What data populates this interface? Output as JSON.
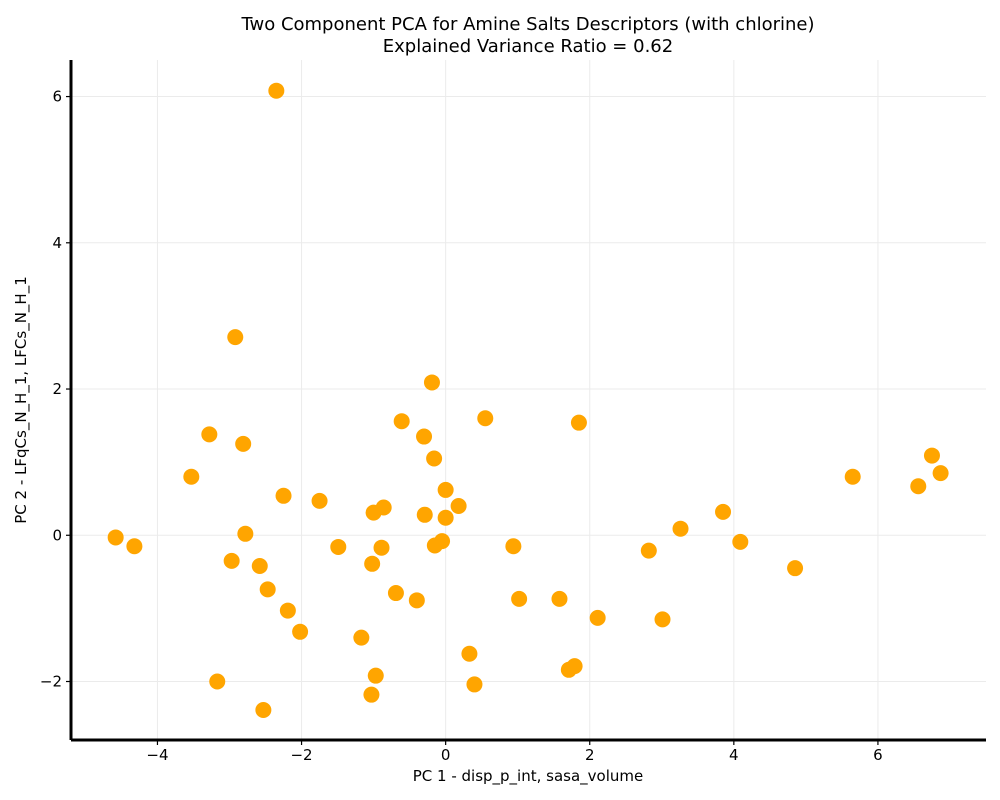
{
  "chart_data": {
    "type": "scatter",
    "title": "Two Component PCA for Amine Salts Descriptors (with chlorine)",
    "subtitle": "Explained Variance Ratio = 0.62",
    "xlabel": "PC 1 - disp_p_int, sasa_volume",
    "ylabel": "PC 2 - LFqCs_N_H_1, LFCs_N_H_1",
    "xlim": [
      -5.2,
      7.5
    ],
    "ylim": [
      -2.8,
      6.5
    ],
    "xticks": [
      -4,
      -2,
      0,
      2,
      4,
      6
    ],
    "yticks": [
      -2,
      0,
      2,
      4,
      6
    ],
    "xtick_labels": [
      "−4",
      "−2",
      "0",
      "2",
      "4",
      "6"
    ],
    "ytick_labels": [
      "−2",
      "0",
      "2",
      "4",
      "6"
    ],
    "grid": true,
    "point_color": "#FFA500",
    "points": [
      {
        "x": -2.35,
        "y": 6.08
      },
      {
        "x": -2.92,
        "y": 2.71
      },
      {
        "x": -0.19,
        "y": 2.09
      },
      {
        "x": 0.55,
        "y": 1.6
      },
      {
        "x": 1.85,
        "y": 1.54
      },
      {
        "x": -0.61,
        "y": 1.56
      },
      {
        "x": -0.3,
        "y": 1.35
      },
      {
        "x": -3.28,
        "y": 1.38
      },
      {
        "x": -2.81,
        "y": 1.25
      },
      {
        "x": -0.16,
        "y": 1.05
      },
      {
        "x": 6.75,
        "y": 1.09
      },
      {
        "x": 6.87,
        "y": 0.85
      },
      {
        "x": 5.65,
        "y": 0.8
      },
      {
        "x": 6.56,
        "y": 0.67
      },
      {
        "x": -3.53,
        "y": 0.8
      },
      {
        "x": 0.0,
        "y": 0.62
      },
      {
        "x": -2.25,
        "y": 0.54
      },
      {
        "x": -1.75,
        "y": 0.47
      },
      {
        "x": 0.18,
        "y": 0.4
      },
      {
        "x": -0.86,
        "y": 0.38
      },
      {
        "x": -1.0,
        "y": 0.31
      },
      {
        "x": -0.29,
        "y": 0.28
      },
      {
        "x": 0.0,
        "y": 0.24
      },
      {
        "x": 3.85,
        "y": 0.32
      },
      {
        "x": 3.26,
        "y": 0.09
      },
      {
        "x": -2.78,
        "y": 0.02
      },
      {
        "x": -4.58,
        "y": -0.03
      },
      {
        "x": -4.32,
        "y": -0.15
      },
      {
        "x": -0.05,
        "y": -0.08
      },
      {
        "x": -0.15,
        "y": -0.14
      },
      {
        "x": -1.49,
        "y": -0.16
      },
      {
        "x": -0.89,
        "y": -0.17
      },
      {
        "x": 0.94,
        "y": -0.15
      },
      {
        "x": 4.09,
        "y": -0.09
      },
      {
        "x": 2.82,
        "y": -0.21
      },
      {
        "x": -2.97,
        "y": -0.35
      },
      {
        "x": -2.58,
        "y": -0.42
      },
      {
        "x": -1.02,
        "y": -0.39
      },
      {
        "x": 4.85,
        "y": -0.45
      },
      {
        "x": -2.47,
        "y": -0.74
      },
      {
        "x": -0.69,
        "y": -0.79
      },
      {
        "x": -0.4,
        "y": -0.89
      },
      {
        "x": 1.02,
        "y": -0.87
      },
      {
        "x": 1.58,
        "y": -0.87
      },
      {
        "x": -2.19,
        "y": -1.03
      },
      {
        "x": 2.11,
        "y": -1.13
      },
      {
        "x": 3.01,
        "y": -1.15
      },
      {
        "x": -2.02,
        "y": -1.32
      },
      {
        "x": -1.17,
        "y": -1.4
      },
      {
        "x": 0.33,
        "y": -1.62
      },
      {
        "x": 1.79,
        "y": -1.79
      },
      {
        "x": 1.71,
        "y": -1.84
      },
      {
        "x": -0.97,
        "y": -1.92
      },
      {
        "x": -3.17,
        "y": -2.0
      },
      {
        "x": 0.4,
        "y": -2.04
      },
      {
        "x": -1.03,
        "y": -2.18
      },
      {
        "x": -2.53,
        "y": -2.39
      }
    ]
  }
}
